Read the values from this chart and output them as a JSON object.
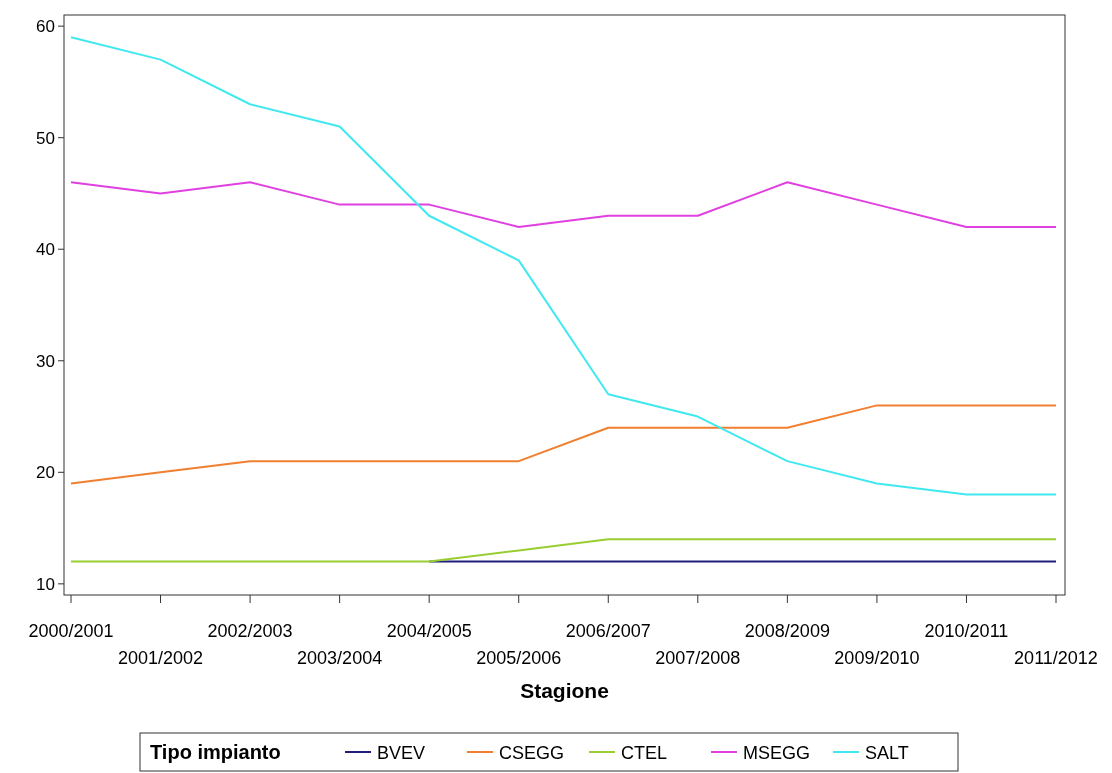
{
  "chart_data": {
    "type": "line",
    "xlabel": "Stagione",
    "legend_title": "Tipo impianto",
    "legend": "bottom",
    "grid": false,
    "marker": "none",
    "line_style": "solid",
    "categories": [
      "2000/2001",
      "2001/2002",
      "2002/2003",
      "2003/2004",
      "2004/2005",
      "2005/2006",
      "2006/2007",
      "2007/2008",
      "2008/2009",
      "2009/2010",
      "2010/2011",
      "2011/2012"
    ],
    "ylim": [
      9,
      61
    ],
    "yticks": [
      10,
      20,
      30,
      40,
      50,
      60
    ],
    "series": [
      {
        "name": "BVEV",
        "color": "#1f1f7a",
        "values": [
          null,
          null,
          null,
          null,
          12,
          12,
          12,
          12,
          12,
          12,
          12,
          12
        ]
      },
      {
        "name": "CSEGG",
        "color": "#f07f30",
        "values": [
          19,
          20,
          21,
          21,
          21,
          21,
          24,
          24,
          24,
          26,
          26,
          26
        ]
      },
      {
        "name": "CTEL",
        "color": "#9acd32",
        "values": [
          12,
          12,
          12,
          12,
          12,
          13,
          14,
          14,
          14,
          14,
          14,
          14
        ]
      },
      {
        "name": "MSEGG",
        "color": "#e040e0",
        "values": [
          46,
          45,
          46,
          44,
          44,
          42,
          43,
          43,
          46,
          44,
          42,
          42
        ]
      },
      {
        "name": "SALT",
        "color": "#40e8f0",
        "values": [
          59,
          57,
          53,
          51,
          43,
          39,
          27,
          25,
          21,
          19,
          18,
          18
        ]
      }
    ]
  }
}
